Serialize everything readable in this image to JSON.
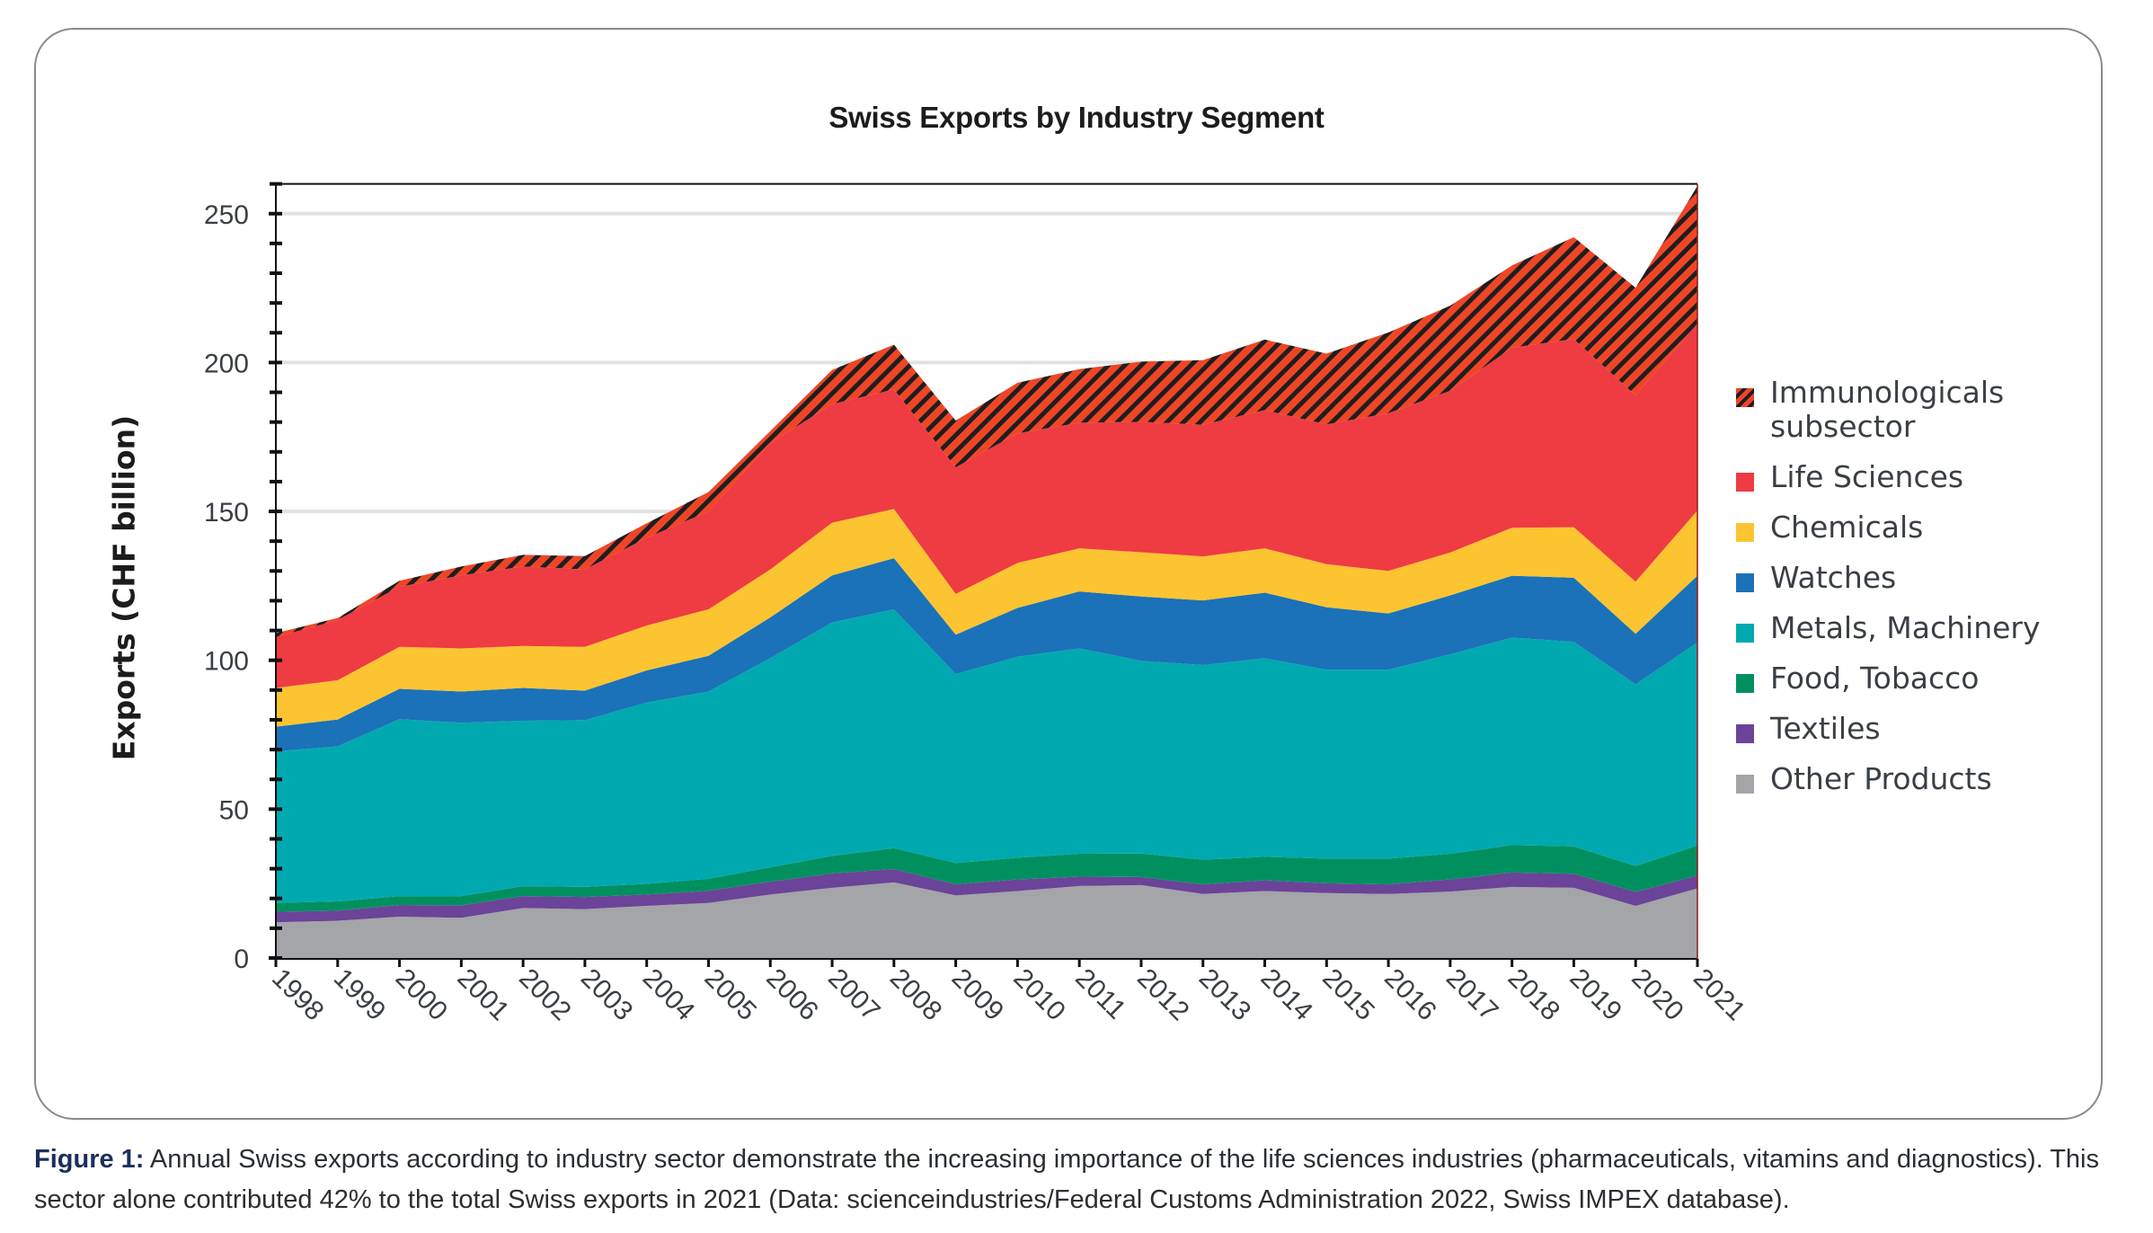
{
  "figure": {
    "caption_label": "Figure 1:",
    "caption_text": " Annual Swiss exports according to industry sector demonstrate the increasing importance of the life sciences industries (pharmaceuticals, vitamins and diagnostics). This sector alone contributed 42% to the total Swiss exports in 2021 (Data: scienceindustries/Federal Customs Administration 2022, Swiss IMPEX database)."
  },
  "chart_data": {
    "type": "area",
    "stacked": true,
    "title": "Swiss Exports by Industry Segment",
    "xlabel": "",
    "ylabel": "Exports (CHF billion)",
    "ylim": [
      0,
      260
    ],
    "yticks": [
      0,
      50,
      100,
      150,
      200,
      250
    ],
    "y_minor_tick_step": 10,
    "grid": "horizontal at major ticks",
    "legend_position": "right",
    "x": [
      "1998",
      "1999",
      "2000",
      "2001",
      "2002",
      "2003",
      "2004",
      "2005",
      "2006",
      "2007",
      "2008",
      "2009",
      "2010",
      "2011",
      "2012",
      "2013",
      "2014",
      "2015",
      "2016",
      "2017",
      "2018",
      "2019",
      "2020",
      "2021"
    ],
    "series": [
      {
        "name": "Other Products",
        "color": "#a4a5a8",
        "pattern": "solid",
        "values": [
          12.0,
          12.5,
          13.9,
          13.5,
          16.8,
          16.4,
          17.5,
          18.5,
          21.3,
          23.6,
          25.4,
          21.0,
          22.5,
          24.2,
          24.5,
          21.5,
          22.5,
          21.8,
          21.5,
          22.3,
          23.9,
          23.6,
          17.5,
          23.4
        ]
      },
      {
        "name": "Textiles",
        "color": "#6b4399",
        "pattern": "solid",
        "values": [
          3.5,
          3.4,
          3.9,
          4.2,
          4.0,
          4.1,
          3.8,
          4.1,
          4.3,
          4.8,
          4.5,
          3.7,
          3.9,
          3.1,
          2.7,
          3.2,
          3.6,
          3.3,
          3.2,
          4.1,
          4.8,
          4.7,
          4.7,
          4.3
        ]
      },
      {
        "name": "Food, Tobacco",
        "color": "#00905f",
        "pattern": "solid",
        "values": [
          3.0,
          3.1,
          3.0,
          3.1,
          3.3,
          3.4,
          3.6,
          4.0,
          4.9,
          5.9,
          7.0,
          7.2,
          7.3,
          7.7,
          7.9,
          8.3,
          7.9,
          8.3,
          8.7,
          8.6,
          9.2,
          9.2,
          8.7,
          10.1
        ]
      },
      {
        "name": "Metals, Machinery",
        "color": "#00a9b0",
        "pattern": "solid",
        "values": [
          50.9,
          52.1,
          59.4,
          58.2,
          55.6,
          56.0,
          60.9,
          62.9,
          70.2,
          78.4,
          80.2,
          63.5,
          67.5,
          69.0,
          64.7,
          65.4,
          66.7,
          63.4,
          63.4,
          67.0,
          69.7,
          68.7,
          61.0,
          68.2
        ]
      },
      {
        "name": "Watches",
        "color": "#1b72b8",
        "pattern": "solid",
        "values": [
          8.3,
          9.0,
          10.2,
          10.5,
          11.0,
          9.9,
          10.8,
          12.0,
          13.7,
          15.8,
          17.2,
          13.2,
          16.4,
          19.1,
          21.6,
          21.7,
          22.0,
          21.0,
          18.9,
          19.8,
          20.8,
          21.5,
          17.0,
          22.4
        ]
      },
      {
        "name": "Chemicals",
        "color": "#fdc431",
        "pattern": "solid",
        "values": [
          13.0,
          13.2,
          14.1,
          14.5,
          14.1,
          14.7,
          15.1,
          15.6,
          16.1,
          17.7,
          16.5,
          13.7,
          15.1,
          14.5,
          14.9,
          14.8,
          14.9,
          14.5,
          14.3,
          14.4,
          16.1,
          17.0,
          17.5,
          21.9
        ]
      },
      {
        "name": "Life Sciences",
        "color": "#ef3b42",
        "pattern": "solid",
        "values": [
          17.1,
          20.2,
          20.2,
          24.5,
          26.7,
          26.0,
          29.4,
          32.9,
          42.5,
          39.8,
          40.2,
          42.5,
          43.5,
          42.2,
          43.8,
          44.2,
          46.4,
          46.9,
          53.0,
          54.3,
          60.5,
          63.2,
          62.6,
          62.8
        ]
      },
      {
        "name": "Immunologicals subsector",
        "color": "#ef4527",
        "pattern": "hatched",
        "values": [
          1.3,
          0.7,
          2.0,
          3.0,
          3.9,
          4.5,
          4.9,
          6.5,
          4.0,
          11.5,
          15.0,
          15.7,
          17.0,
          18.0,
          20.2,
          21.7,
          23.7,
          23.8,
          27.1,
          28.6,
          27.6,
          34.2,
          36.1,
          46.2
        ]
      }
    ],
    "legend_order": [
      "Immunologicals subsector",
      "Life Sciences",
      "Chemicals",
      "Watches",
      "Metals, Machinery",
      "Food, Tobacco",
      "Textiles",
      "Other Products"
    ],
    "legend_labels": {
      "Immunologicals subsector": [
        "Immunologicals",
        "subsector"
      ]
    }
  }
}
